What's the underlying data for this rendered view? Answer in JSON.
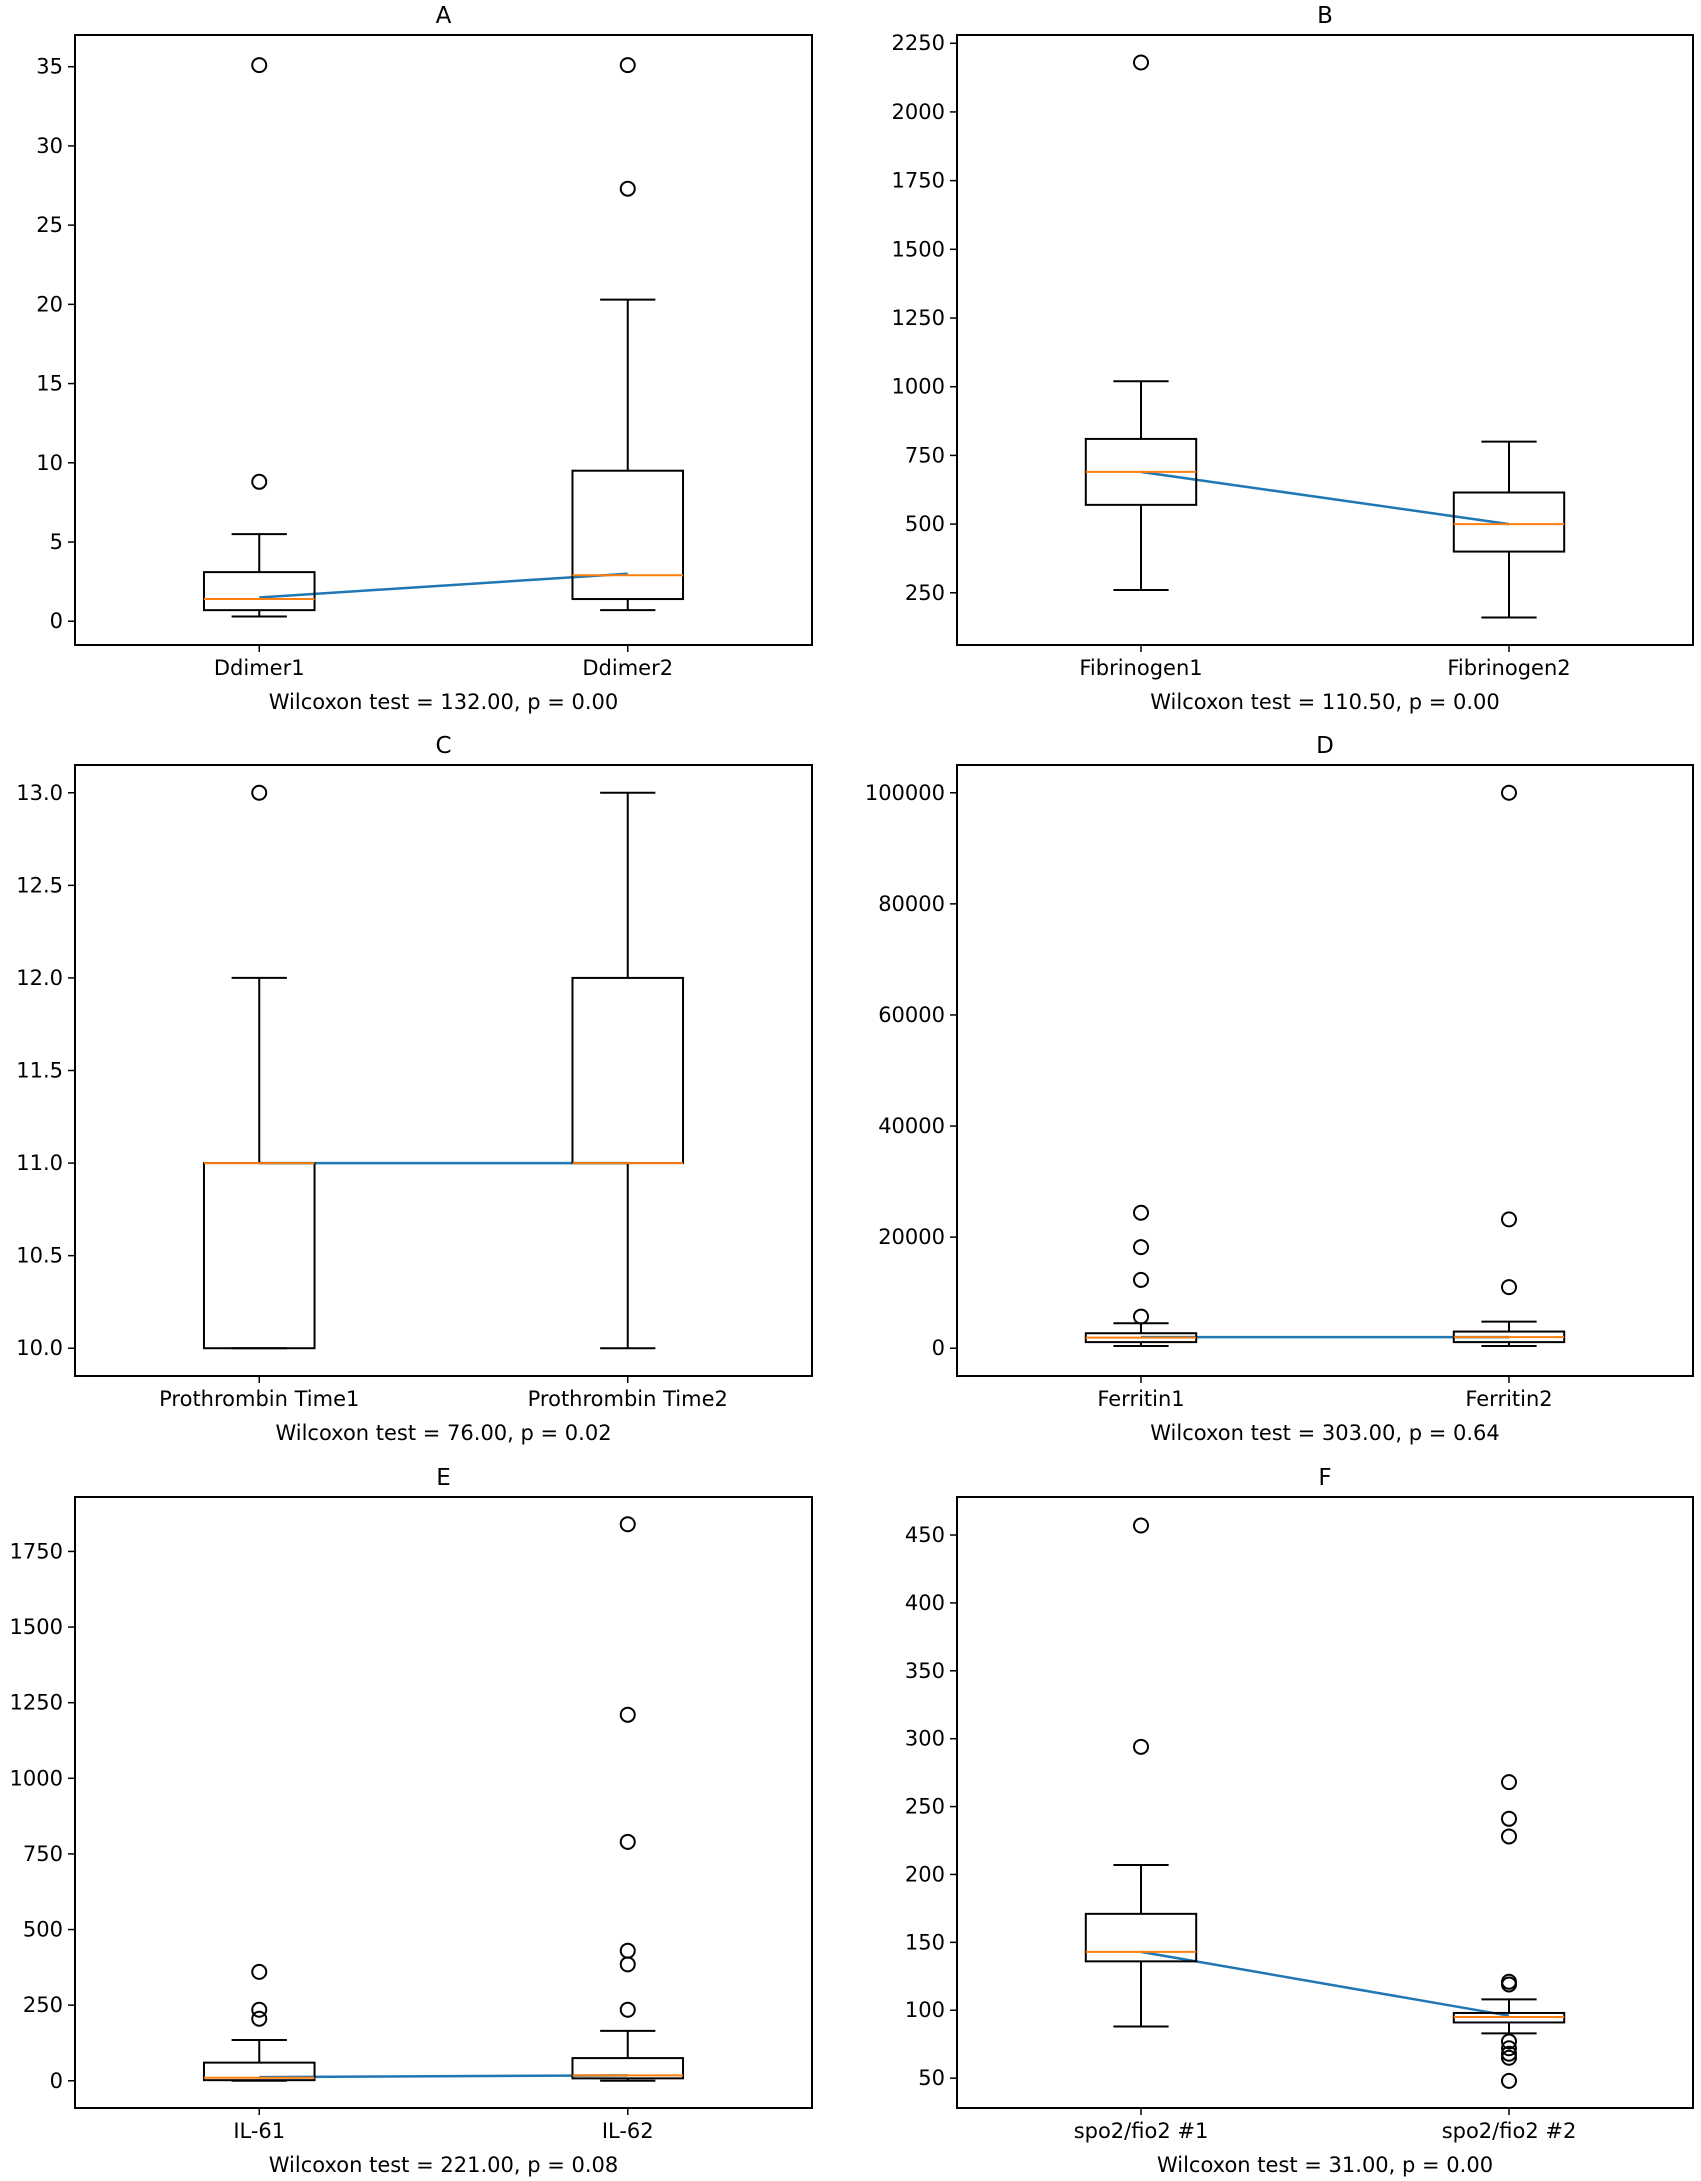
{
  "figure": {
    "colors": {
      "box": "#000000",
      "median": "#ff7f0e",
      "connector": "#1f77b4",
      "flier": "#000000"
    }
  },
  "chart_data": [
    {
      "type": "box",
      "title": "A",
      "categories": [
        "Ddimer1",
        "Ddimer2"
      ],
      "xlabel": "Wilcoxon test = 132.00, p = 0.00",
      "ylim": [
        -1.5,
        37
      ],
      "yticks": [
        0,
        5,
        10,
        15,
        20,
        25,
        30,
        35
      ],
      "ytick_labels": [
        "0",
        "5",
        "10",
        "15",
        "20",
        "25",
        "30",
        "35"
      ],
      "boxes": [
        {
          "name": "Ddimer1",
          "whislo": 0.3,
          "q1": 0.7,
          "med": 1.4,
          "q3": 3.1,
          "whishi": 5.5,
          "fliers": [
            8.8,
            35.1
          ]
        },
        {
          "name": "Ddimer2",
          "whislo": 0.7,
          "q1": 1.4,
          "med": 2.9,
          "q3": 9.5,
          "whishi": 20.3,
          "fliers": [
            27.3,
            35.1
          ]
        }
      ],
      "connector": [
        1.5,
        3.0
      ]
    },
    {
      "type": "box",
      "title": "B",
      "categories": [
        "Fibrinogen1",
        "Fibrinogen2"
      ],
      "xlabel": "Wilcoxon test = 110.50, p = 0.00",
      "ylim": [
        60,
        2280
      ],
      "yticks": [
        250,
        500,
        750,
        1000,
        1250,
        1500,
        1750,
        2000,
        2250
      ],
      "ytick_labels": [
        "250",
        "500",
        "750",
        "1000",
        "1250",
        "1500",
        "1750",
        "2000",
        "2250"
      ],
      "boxes": [
        {
          "name": "Fibrinogen1",
          "whislo": 260,
          "q1": 570,
          "med": 690,
          "q3": 810,
          "whishi": 1020,
          "fliers": [
            2180
          ]
        },
        {
          "name": "Fibrinogen2",
          "whislo": 160,
          "q1": 400,
          "med": 500,
          "q3": 615,
          "whishi": 800,
          "fliers": []
        }
      ],
      "connector": [
        690,
        500
      ]
    },
    {
      "type": "box",
      "title": "C",
      "categories": [
        "Prothrombin Time1",
        "Prothrombin Time2"
      ],
      "xlabel": "Wilcoxon test = 76.00, p = 0.02",
      "ylim": [
        9.85,
        13.15
      ],
      "yticks": [
        10.0,
        10.5,
        11.0,
        11.5,
        12.0,
        12.5,
        13.0
      ],
      "ytick_labels": [
        "10.0",
        "10.5",
        "11.0",
        "11.5",
        "12.0",
        "12.5",
        "13.0"
      ],
      "boxes": [
        {
          "name": "Prothrombin Time1",
          "whislo": 10.0,
          "q1": 10.0,
          "med": 11.0,
          "q3": 11.0,
          "whishi": 12.0,
          "fliers": [
            13.0
          ]
        },
        {
          "name": "Prothrombin Time2",
          "whislo": 10.0,
          "q1": 11.0,
          "med": 11.0,
          "q3": 12.0,
          "whishi": 13.0,
          "fliers": []
        }
      ],
      "connector": [
        11.0,
        11.0
      ]
    },
    {
      "type": "box",
      "title": "D",
      "categories": [
        "Ferritin1",
        "Ferritin2"
      ],
      "xlabel": "Wilcoxon test = 303.00, p = 0.64",
      "ylim": [
        -5000,
        105000
      ],
      "yticks": [
        0,
        20000,
        40000,
        60000,
        80000,
        100000
      ],
      "ytick_labels": [
        "0",
        "20000",
        "40000",
        "60000",
        "80000",
        "100000"
      ],
      "boxes": [
        {
          "name": "Ferritin1",
          "whislo": 400,
          "q1": 1100,
          "med": 1900,
          "q3": 2700,
          "whishi": 4500,
          "fliers": [
            5700,
            12300,
            18200,
            24400
          ]
        },
        {
          "name": "Ferritin2",
          "whislo": 400,
          "q1": 1100,
          "med": 2000,
          "q3": 3000,
          "whishi": 4800,
          "fliers": [
            11000,
            23200,
            100000
          ]
        }
      ],
      "connector": [
        2000,
        2000
      ]
    },
    {
      "type": "box",
      "title": "E",
      "categories": [
        "IL-61",
        "IL-62"
      ],
      "xlabel": "Wilcoxon test = 221.00, p = 0.08",
      "ylim": [
        -90,
        1930
      ],
      "yticks": [
        0,
        250,
        500,
        750,
        1000,
        1250,
        1500,
        1750
      ],
      "ytick_labels": [
        "0",
        "250",
        "500",
        "750",
        "1000",
        "1250",
        "1500",
        "1750"
      ],
      "boxes": [
        {
          "name": "IL-61",
          "whislo": 0,
          "q1": 2,
          "med": 10,
          "q3": 60,
          "whishi": 135,
          "fliers": [
            205,
            235,
            360
          ]
        },
        {
          "name": "IL-62",
          "whislo": 0,
          "q1": 8,
          "med": 18,
          "q3": 75,
          "whishi": 165,
          "fliers": [
            235,
            385,
            430,
            790,
            1210,
            1840
          ]
        }
      ],
      "connector": [
        12,
        18
      ]
    },
    {
      "type": "box",
      "title": "F",
      "categories": [
        "spo2/fio2 #1",
        "spo2/fio2 #2"
      ],
      "xlabel": "Wilcoxon test = 31.00, p = 0.00",
      "ylim": [
        28,
        478
      ],
      "yticks": [
        50,
        100,
        150,
        200,
        250,
        300,
        350,
        400,
        450
      ],
      "ytick_labels": [
        "50",
        "100",
        "150",
        "200",
        "250",
        "300",
        "350",
        "400",
        "450"
      ],
      "boxes": [
        {
          "name": "spo2/fio2 #1",
          "whislo": 88,
          "q1": 136,
          "med": 143,
          "q3": 171,
          "whishi": 207,
          "fliers": [
            294,
            457
          ]
        },
        {
          "name": "spo2/fio2 #2",
          "whislo": 83,
          "q1": 91,
          "med": 95,
          "q3": 98,
          "whishi": 108,
          "fliers": [
            48,
            65,
            68,
            72,
            77,
            119,
            121,
            228,
            241,
            268
          ]
        }
      ],
      "connector": [
        143,
        96
      ]
    }
  ]
}
